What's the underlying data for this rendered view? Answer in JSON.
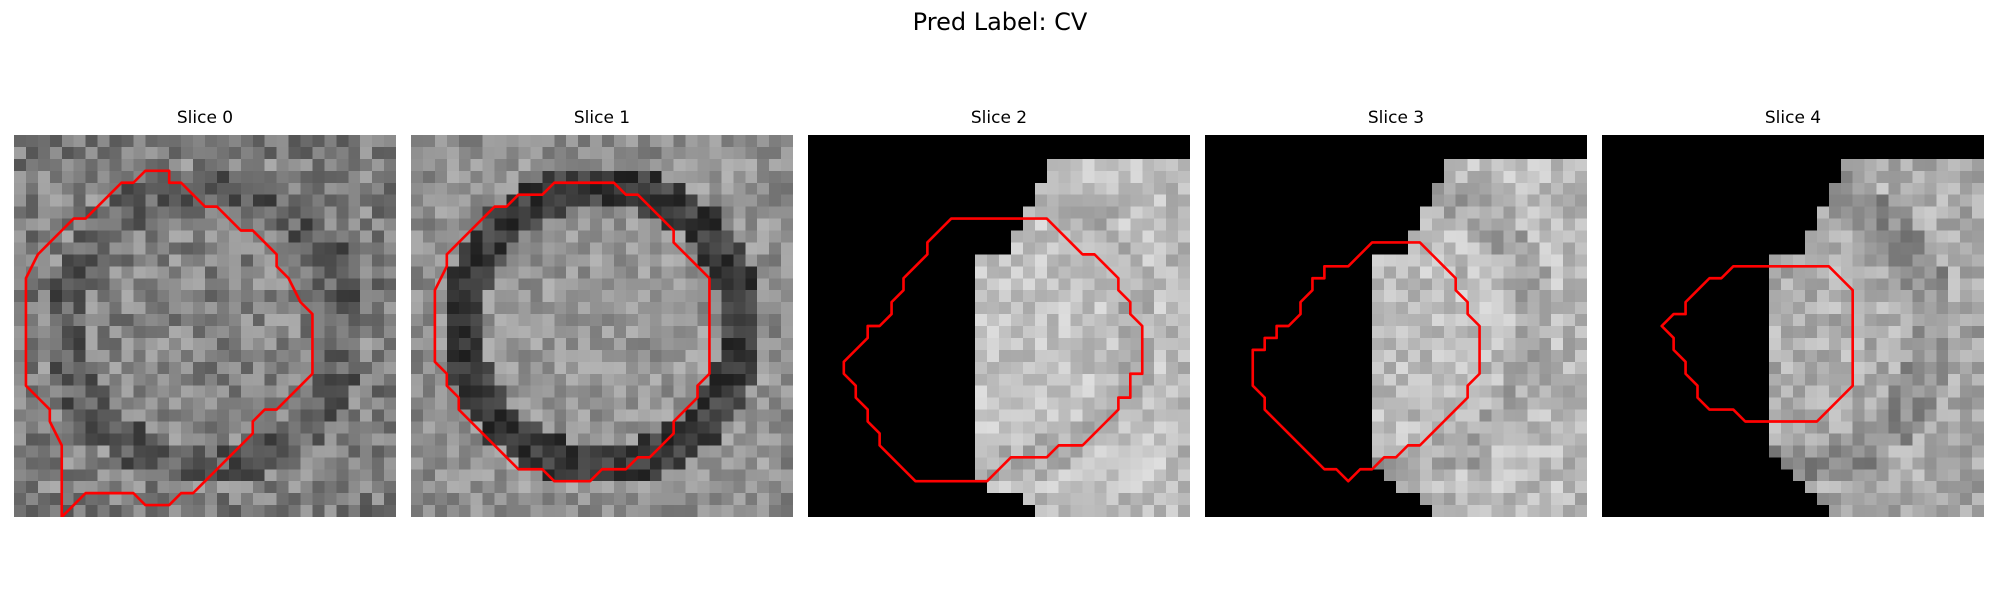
{
  "figure": {
    "suptitle": "Pred Label: CV",
    "panels": [
      {
        "title": "Slice 0",
        "seed": 11,
        "mask": "none",
        "base": 132,
        "ring": 40,
        "noise": 80,
        "contour": [
          [
            13,
            4
          ],
          [
            14,
            4
          ],
          [
            15,
            5
          ],
          [
            16,
            6
          ],
          [
            17,
            6
          ],
          [
            18,
            7
          ],
          [
            19,
            8
          ],
          [
            20,
            8
          ],
          [
            21,
            9
          ],
          [
            22,
            10
          ],
          [
            22,
            11
          ],
          [
            23,
            12
          ],
          [
            24,
            14
          ],
          [
            25,
            15
          ],
          [
            25,
            20
          ],
          [
            24,
            21
          ],
          [
            23,
            22
          ],
          [
            22,
            23
          ],
          [
            21,
            23
          ],
          [
            20,
            24
          ],
          [
            20,
            25
          ],
          [
            19,
            26
          ],
          [
            18,
            27
          ],
          [
            17,
            28
          ],
          [
            16,
            29
          ],
          [
            15,
            30
          ],
          [
            14,
            30
          ],
          [
            13,
            31
          ],
          [
            11,
            31
          ],
          [
            10,
            30
          ],
          [
            7,
            30
          ],
          [
            6,
            30
          ],
          [
            5,
            31
          ],
          [
            4,
            32
          ],
          [
            4,
            29
          ],
          [
            4,
            26
          ],
          [
            3,
            24
          ],
          [
            3,
            23
          ],
          [
            2,
            22
          ],
          [
            1,
            21
          ],
          [
            1,
            20
          ],
          [
            1,
            18
          ],
          [
            1,
            12
          ],
          [
            2,
            10
          ],
          [
            3,
            9
          ],
          [
            4,
            8
          ],
          [
            5,
            7
          ],
          [
            6,
            7
          ],
          [
            7,
            6
          ],
          [
            8,
            5
          ],
          [
            9,
            4
          ],
          [
            10,
            4
          ],
          [
            11,
            3
          ],
          [
            13,
            3
          ]
        ]
      },
      {
        "title": "Slice 1",
        "seed": 22,
        "mask": "none",
        "base": 150,
        "ring": 90,
        "noise": 60,
        "contour": [
          [
            10,
            5
          ],
          [
            11,
            5
          ],
          [
            12,
            4
          ],
          [
            14,
            4
          ],
          [
            15,
            4
          ],
          [
            16,
            4
          ],
          [
            17,
            4
          ],
          [
            18,
            5
          ],
          [
            19,
            5
          ],
          [
            20,
            6
          ],
          [
            21,
            7
          ],
          [
            22,
            8
          ],
          [
            22,
            9
          ],
          [
            23,
            10
          ],
          [
            24,
            11
          ],
          [
            25,
            12
          ],
          [
            25,
            20
          ],
          [
            24,
            21
          ],
          [
            24,
            22
          ],
          [
            23,
            23
          ],
          [
            22,
            24
          ],
          [
            22,
            25
          ],
          [
            21,
            26
          ],
          [
            20,
            27
          ],
          [
            19,
            27
          ],
          [
            18,
            28
          ],
          [
            17,
            28
          ],
          [
            16,
            28
          ],
          [
            15,
            29
          ],
          [
            14,
            29
          ],
          [
            13,
            29
          ],
          [
            12,
            29
          ],
          [
            11,
            28
          ],
          [
            10,
            28
          ],
          [
            9,
            28
          ],
          [
            8,
            27
          ],
          [
            7,
            26
          ],
          [
            6,
            25
          ],
          [
            5,
            24
          ],
          [
            4,
            23
          ],
          [
            4,
            22
          ],
          [
            3,
            21
          ],
          [
            3,
            20
          ],
          [
            2,
            19
          ],
          [
            2,
            13
          ],
          [
            3,
            11
          ],
          [
            3,
            10
          ],
          [
            4,
            9
          ],
          [
            5,
            8
          ],
          [
            6,
            7
          ],
          [
            7,
            6
          ],
          [
            8,
            6
          ],
          [
            9,
            5
          ]
        ]
      },
      {
        "title": "Slice 2",
        "seed": 33,
        "mask": "s2",
        "base": 195,
        "ring": 20,
        "noise": 55,
        "contour": [
          [
            13,
            7
          ],
          [
            14,
            7
          ],
          [
            15,
            7
          ],
          [
            16,
            7
          ],
          [
            17,
            7
          ],
          [
            18,
            7
          ],
          [
            19,
            7
          ],
          [
            20,
            7
          ],
          [
            21,
            8
          ],
          [
            22,
            9
          ],
          [
            23,
            10
          ],
          [
            24,
            10
          ],
          [
            25,
            11
          ],
          [
            26,
            12
          ],
          [
            26,
            13
          ],
          [
            27,
            14
          ],
          [
            27,
            15
          ],
          [
            28,
            16
          ],
          [
            28,
            20
          ],
          [
            27,
            20
          ],
          [
            27,
            22
          ],
          [
            26,
            22
          ],
          [
            26,
            23
          ],
          [
            25,
            24
          ],
          [
            24,
            25
          ],
          [
            23,
            26
          ],
          [
            22,
            26
          ],
          [
            21,
            26
          ],
          [
            20,
            27
          ],
          [
            19,
            27
          ],
          [
            18,
            27
          ],
          [
            17,
            27
          ],
          [
            16,
            28
          ],
          [
            15,
            29
          ],
          [
            14,
            29
          ],
          [
            13,
            29
          ],
          [
            12,
            29
          ],
          [
            11,
            29
          ],
          [
            10,
            29
          ],
          [
            9,
            29
          ],
          [
            8,
            28
          ],
          [
            7,
            27
          ],
          [
            6,
            26
          ],
          [
            6,
            25
          ],
          [
            5,
            24
          ],
          [
            5,
            23
          ],
          [
            4,
            22
          ],
          [
            4,
            21
          ],
          [
            3,
            20
          ],
          [
            3,
            19
          ],
          [
            4,
            18
          ],
          [
            5,
            17
          ],
          [
            5,
            16
          ],
          [
            6,
            16
          ],
          [
            7,
            15
          ],
          [
            7,
            14
          ],
          [
            8,
            13
          ],
          [
            8,
            12
          ],
          [
            9,
            11
          ],
          [
            10,
            10
          ],
          [
            10,
            9
          ],
          [
            11,
            8
          ],
          [
            12,
            7
          ]
        ]
      },
      {
        "title": "Slice 3",
        "seed": 44,
        "mask": "s3",
        "base": 190,
        "ring": 25,
        "noise": 60,
        "contour": [
          [
            14,
            9
          ],
          [
            15,
            9
          ],
          [
            16,
            9
          ],
          [
            17,
            9
          ],
          [
            18,
            9
          ],
          [
            19,
            10
          ],
          [
            20,
            11
          ],
          [
            21,
            12
          ],
          [
            21,
            13
          ],
          [
            22,
            14
          ],
          [
            22,
            15
          ],
          [
            23,
            16
          ],
          [
            23,
            17
          ],
          [
            23,
            18
          ],
          [
            23,
            20
          ],
          [
            22,
            21
          ],
          [
            22,
            22
          ],
          [
            21,
            23
          ],
          [
            20,
            24
          ],
          [
            19,
            25
          ],
          [
            18,
            26
          ],
          [
            17,
            26
          ],
          [
            16,
            27
          ],
          [
            15,
            27
          ],
          [
            14,
            28
          ],
          [
            13,
            28
          ],
          [
            12,
            29
          ],
          [
            11,
            28
          ],
          [
            10,
            28
          ],
          [
            9,
            27
          ],
          [
            8,
            26
          ],
          [
            7,
            25
          ],
          [
            6,
            24
          ],
          [
            5,
            23
          ],
          [
            5,
            22
          ],
          [
            4,
            21
          ],
          [
            4,
            19
          ],
          [
            4,
            18
          ],
          [
            5,
            18
          ],
          [
            5,
            17
          ],
          [
            6,
            17
          ],
          [
            6,
            16
          ],
          [
            7,
            16
          ],
          [
            8,
            15
          ],
          [
            8,
            14
          ],
          [
            9,
            13
          ],
          [
            9,
            12
          ],
          [
            10,
            12
          ],
          [
            10,
            11
          ],
          [
            11,
            11
          ],
          [
            12,
            11
          ],
          [
            13,
            10
          ]
        ]
      },
      {
        "title": "Slice 4",
        "seed": 55,
        "mask": "s4",
        "base": 175,
        "ring": 35,
        "noise": 60,
        "contour": [
          [
            12,
            11
          ],
          [
            13,
            11
          ],
          [
            14,
            11
          ],
          [
            15,
            11
          ],
          [
            16,
            11
          ],
          [
            17,
            11
          ],
          [
            18,
            11
          ],
          [
            19,
            11
          ],
          [
            20,
            12
          ],
          [
            21,
            13
          ],
          [
            21,
            21
          ],
          [
            20,
            22
          ],
          [
            19,
            23
          ],
          [
            18,
            24
          ],
          [
            17,
            24
          ],
          [
            16,
            24
          ],
          [
            15,
            24
          ],
          [
            14,
            24
          ],
          [
            13,
            24
          ],
          [
            12,
            24
          ],
          [
            11,
            23
          ],
          [
            10,
            23
          ],
          [
            9,
            23
          ],
          [
            8,
            22
          ],
          [
            8,
            21
          ],
          [
            7,
            20
          ],
          [
            7,
            19
          ],
          [
            6,
            18
          ],
          [
            6,
            17
          ],
          [
            5,
            16
          ],
          [
            6,
            15
          ],
          [
            7,
            15
          ],
          [
            7,
            14
          ],
          [
            8,
            13
          ],
          [
            9,
            12
          ],
          [
            10,
            12
          ],
          [
            11,
            11
          ]
        ]
      }
    ]
  }
}
